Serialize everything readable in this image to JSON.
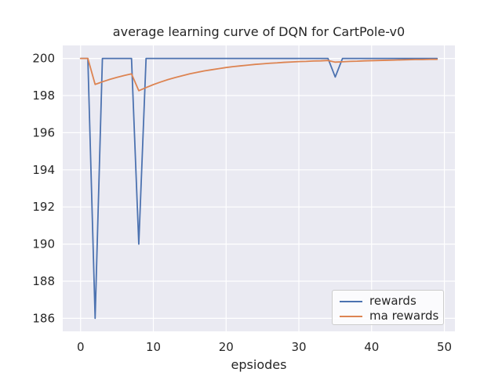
{
  "chart_data": {
    "type": "line",
    "title": "average learning curve of DQN for CartPole-v0",
    "xlabel": "epsiodes",
    "ylabel": "",
    "x": [
      0,
      1,
      2,
      3,
      4,
      5,
      6,
      7,
      8,
      9,
      10,
      11,
      12,
      13,
      14,
      15,
      16,
      17,
      18,
      19,
      20,
      21,
      22,
      23,
      24,
      25,
      26,
      27,
      28,
      29,
      30,
      31,
      32,
      33,
      34,
      35,
      36,
      37,
      38,
      39,
      40,
      41,
      42,
      43,
      44,
      45,
      46,
      47,
      48,
      49
    ],
    "series": [
      {
        "name": "rewards",
        "color": "#4C72B0",
        "values": [
          200,
          200,
          186,
          200,
          200,
          200,
          200,
          200,
          190,
          200,
          200,
          200,
          200,
          200,
          200,
          200,
          200,
          200,
          200,
          200,
          200,
          200,
          200,
          200,
          200,
          200,
          200,
          200,
          200,
          200,
          200,
          200,
          200,
          200,
          200,
          199,
          200,
          200,
          200,
          200,
          200,
          200,
          200,
          200,
          200,
          200,
          200,
          200,
          200,
          200
        ]
      },
      {
        "name": "ma rewards",
        "color": "#DD8452",
        "values": [
          200,
          200,
          198.6,
          198.74,
          198.87,
          198.98,
          199.08,
          199.17,
          198.26,
          198.43,
          198.59,
          198.73,
          198.86,
          198.97,
          199.07,
          199.17,
          199.25,
          199.33,
          199.39,
          199.45,
          199.51,
          199.56,
          199.6,
          199.64,
          199.68,
          199.71,
          199.74,
          199.76,
          199.79,
          199.81,
          199.83,
          199.84,
          199.86,
          199.87,
          199.89,
          199.8,
          199.82,
          199.84,
          199.85,
          199.87,
          199.88,
          199.89,
          199.9,
          199.91,
          199.92,
          199.93,
          199.94,
          199.94,
          199.95,
          199.95
        ]
      }
    ],
    "xticks": [
      0,
      10,
      20,
      30,
      40,
      50
    ],
    "yticks": [
      186,
      188,
      190,
      192,
      194,
      196,
      198,
      200
    ],
    "xlim": [
      -2.45,
      51.45
    ],
    "ylim": [
      185.3,
      200.7
    ],
    "grid": true,
    "legend_position": "lower right",
    "plot_bg_color": "#EAEAF2",
    "grid_color": "#FFFFFF",
    "text_color": "#262626"
  }
}
